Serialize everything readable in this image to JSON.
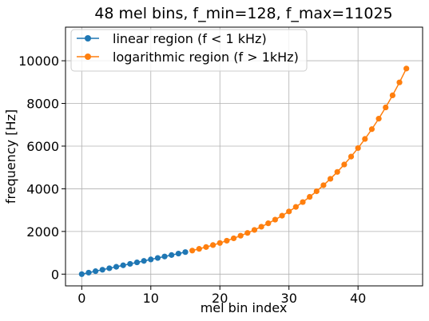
{
  "chart_data": {
    "type": "line",
    "title": "48 mel bins, f_min=128, f_max=11025",
    "xlabel": "mel bin index",
    "ylabel": "frequency [Hz]",
    "xlim": [
      -2.35,
      49.35
    ],
    "ylim": [
      -550,
      11575
    ],
    "xticks": [
      0,
      10,
      20,
      30,
      40
    ],
    "yticks": [
      0,
      2000,
      4000,
      6000,
      8000,
      10000
    ],
    "grid": true,
    "legend_position": "top-left",
    "series": [
      {
        "name": "linear region (f < 1 kHz)",
        "color": "#1f77b4",
        "x": [
          0,
          1,
          2,
          3,
          4,
          5,
          6,
          7,
          8,
          9,
          10,
          11,
          12,
          13,
          14,
          15
        ],
        "y": [
          0,
          68.8,
          137.7,
          206.5,
          275.4,
          344.2,
          413.1,
          481.9,
          550.8,
          619.6,
          688.5,
          757.3,
          826.1,
          895.0,
          963.8,
          1032.7
        ]
      },
      {
        "name": "logarithmic region (f > 1kHz)",
        "color": "#ff7f0e",
        "x": [
          16,
          17,
          18,
          19,
          20,
          21,
          22,
          23,
          24,
          25,
          26,
          27,
          28,
          29,
          30,
          31,
          32,
          33,
          34,
          35,
          36,
          37,
          38,
          39,
          40,
          41,
          42,
          43,
          44,
          45,
          46,
          47
        ],
        "y": [
          1104,
          1184,
          1270,
          1362,
          1460,
          1566,
          1679,
          1801,
          1931,
          2071,
          2221,
          2382,
          2554,
          2739,
          2937,
          3150,
          3378,
          3622,
          3885,
          4166,
          4467,
          4790,
          5137,
          5509,
          5908,
          6335,
          6794,
          7286,
          7813,
          8379,
          8985,
          9635
        ]
      }
    ]
  }
}
